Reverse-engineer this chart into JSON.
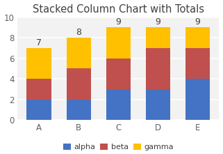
{
  "title": "Stacked Column Chart with Totals",
  "categories": [
    "A",
    "B",
    "C",
    "D",
    "E"
  ],
  "series": {
    "alpha": [
      2,
      2,
      3,
      3,
      4
    ],
    "beta": [
      2,
      3,
      3,
      4,
      3
    ],
    "gamma": [
      3,
      3,
      3,
      2,
      2
    ]
  },
  "totals": [
    7,
    8,
    9,
    9,
    9
  ],
  "colors": {
    "alpha": "#4472C4",
    "beta": "#C0504D",
    "gamma": "#FFC000"
  },
  "ylim": [
    0,
    10
  ],
  "yticks": [
    0,
    2,
    4,
    6,
    8,
    10
  ],
  "bar_width": 0.62,
  "title_fontsize": 10.5,
  "tick_fontsize": 8.5,
  "legend_fontsize": 8,
  "total_fontsize": 9,
  "plot_bg_color": "#f2f2f2",
  "fig_bg_color": "#ffffff",
  "grid_color": "#ffffff"
}
